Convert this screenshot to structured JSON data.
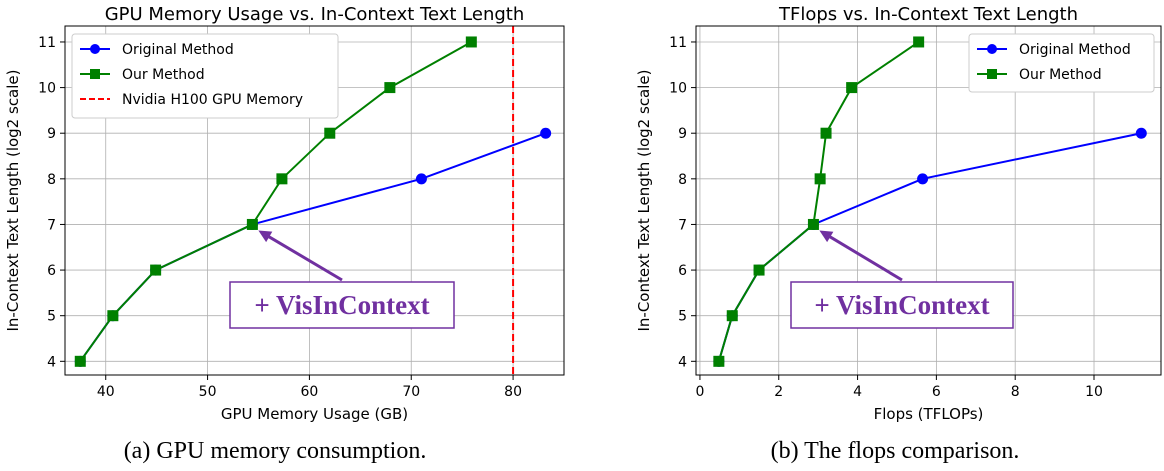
{
  "figures": [
    {
      "caption": "(a) GPU memory consumption.",
      "chart_data": {
        "type": "line",
        "title": "GPU Memory Usage vs. In-Context Text Length",
        "xlabel": "GPU Memory Usage (GB)",
        "ylabel": "In-Context Text Length (log2 scale)",
        "xlim": [
          36,
          85
        ],
        "ylim": [
          3.7,
          11.35
        ],
        "xticks": [
          40,
          50,
          60,
          70,
          80
        ],
        "yticks": [
          4,
          5,
          6,
          7,
          8,
          9,
          10,
          11
        ],
        "grid": true,
        "legend_position": "top-left",
        "series": [
          {
            "name": "Original Method",
            "color": "#0000ff",
            "marker": "circle",
            "x": [
              37.5,
              40.7,
              44.9,
              54.4,
              71.0,
              83.2
            ],
            "y": [
              4,
              5,
              6,
              7,
              8,
              9
            ]
          },
          {
            "name": "Our Method",
            "color": "#008000",
            "marker": "square",
            "x": [
              37.5,
              40.7,
              44.9,
              54.4,
              57.3,
              62.0,
              67.9,
              75.9
            ],
            "y": [
              4,
              5,
              6,
              7,
              8,
              9,
              10,
              11
            ]
          }
        ],
        "reference_lines": [
          {
            "name": "Nvidia H100 GPU Memory",
            "x": 80,
            "color": "#ff0000",
            "style": "dashed"
          }
        ],
        "annotation": {
          "text": "+ VisInContext",
          "point_x": 54.4,
          "point_y": 7,
          "color": "#7030a0"
        }
      }
    },
    {
      "caption": "(b) The flops comparison.",
      "chart_data": {
        "type": "line",
        "title": "TFlops vs. In-Context Text Length",
        "xlabel": "Flops (TFLOPs)",
        "ylabel": "In-Context Text Length (log2 scale)",
        "xlim": [
          -0.1,
          11.7
        ],
        "ylim": [
          3.7,
          11.35
        ],
        "xticks": [
          0,
          2,
          4,
          6,
          8,
          10
        ],
        "yticks": [
          4,
          5,
          6,
          7,
          8,
          9,
          10,
          11
        ],
        "grid": true,
        "legend_position": "top-right",
        "series": [
          {
            "name": "Original Method",
            "color": "#0000ff",
            "marker": "circle",
            "x": [
              0.48,
              0.82,
              1.5,
              2.88,
              5.65,
              11.2
            ],
            "y": [
              4,
              5,
              6,
              7,
              8,
              9
            ]
          },
          {
            "name": "Our Method",
            "color": "#008000",
            "marker": "square",
            "x": [
              0.48,
              0.82,
              1.5,
              2.88,
              3.05,
              3.2,
              3.85,
              5.55
            ],
            "y": [
              4,
              5,
              6,
              7,
              8,
              9,
              10,
              11
            ]
          }
        ],
        "annotation": {
          "text": "+ VisInContext",
          "point_x": 2.88,
          "point_y": 7,
          "color": "#7030a0"
        }
      }
    }
  ]
}
